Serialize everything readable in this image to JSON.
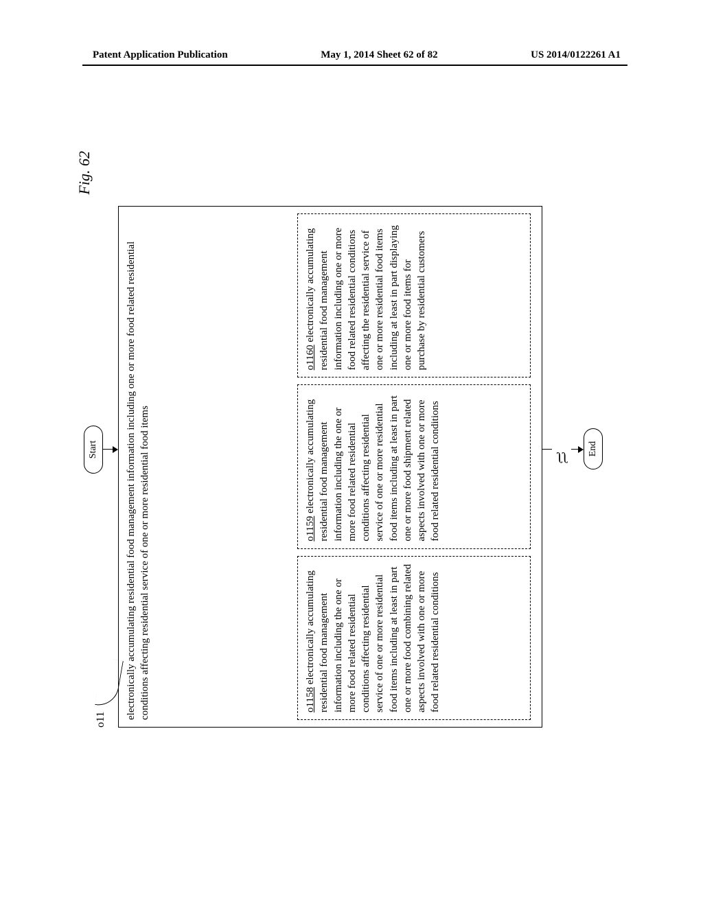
{
  "header": {
    "left": "Patent Application Publication",
    "center": "May 1, 2014  Sheet 62 of 82",
    "right": "US 2014/0122261 A1"
  },
  "figure": {
    "label": "Fig. 62",
    "ref_main": "o11",
    "start": "Start",
    "end": "End",
    "outer_text": "electronically accumulating residential food management information including one or more food related residential conditions affecting residential service of one or more residential food items",
    "boxes": [
      {
        "ref": "o1158",
        "text": " electronically accumulating residential food management information including the one or more food related residential conditions affecting residential service of one or more residential food items including at least in part one or more food combining related aspects involved with one or more food related residential conditions"
      },
      {
        "ref": "o1159",
        "text": " electronically accumulating residential food management information including the one or more food related residential conditions affecting residential service of one or more residential food items including at least in part one or more food shipment related aspects involved with one or more food related residential conditions"
      },
      {
        "ref": "o1160",
        "text": " electronically accumulating residential food management information including one or more food related residential conditions affecting the residential service of one or more residential food items including at least in part displaying one or more food items for purchase by residential customers"
      }
    ]
  }
}
